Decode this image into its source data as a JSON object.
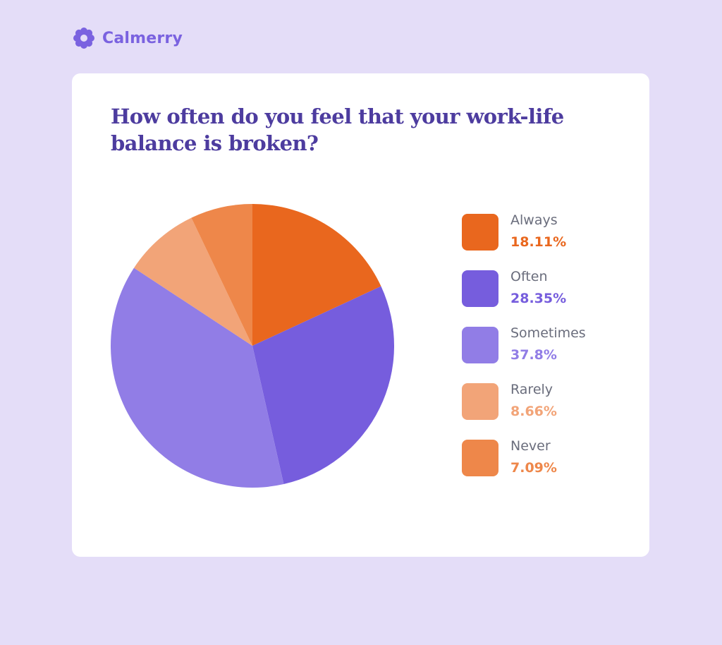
{
  "brand": {
    "name": "Calmerry",
    "icon": "flower-icon",
    "color": "#7a62e0"
  },
  "colors": {
    "background": "#e4ddf8",
    "card": "#ffffff",
    "title": "#4d3c9f",
    "legend_label": "#6a6d7c"
  },
  "chart_data": {
    "type": "pie",
    "title": "How often do you feel that your work-life balance is broken?",
    "start_angle": "12 o'clock",
    "direction": "clockwise",
    "legend_position": "right",
    "categories": [
      "Always",
      "Often",
      "Sometimes",
      "Rarely",
      "Never"
    ],
    "values": [
      18.11,
      28.35,
      37.8,
      8.66,
      7.09
    ],
    "unit": "%",
    "colors": [
      "#e9671e",
      "#765ddd",
      "#917de6",
      "#f2a478",
      "#ee874a"
    ]
  },
  "legend": {
    "items": [
      {
        "label": "Always",
        "value": "18.11%",
        "color": "#e9671e",
        "text_color": "#e9671e"
      },
      {
        "label": "Often",
        "value": "28.35%",
        "color": "#765ddd",
        "text_color": "#765ddd"
      },
      {
        "label": "Sometimes",
        "value": "37.8%",
        "color": "#917de6",
        "text_color": "#917de6"
      },
      {
        "label": "Rarely",
        "value": "8.66%",
        "color": "#f2a478",
        "text_color": "#f2a478"
      },
      {
        "label": "Never",
        "value": "7.09%",
        "color": "#ee874a",
        "text_color": "#ee874a"
      }
    ]
  }
}
